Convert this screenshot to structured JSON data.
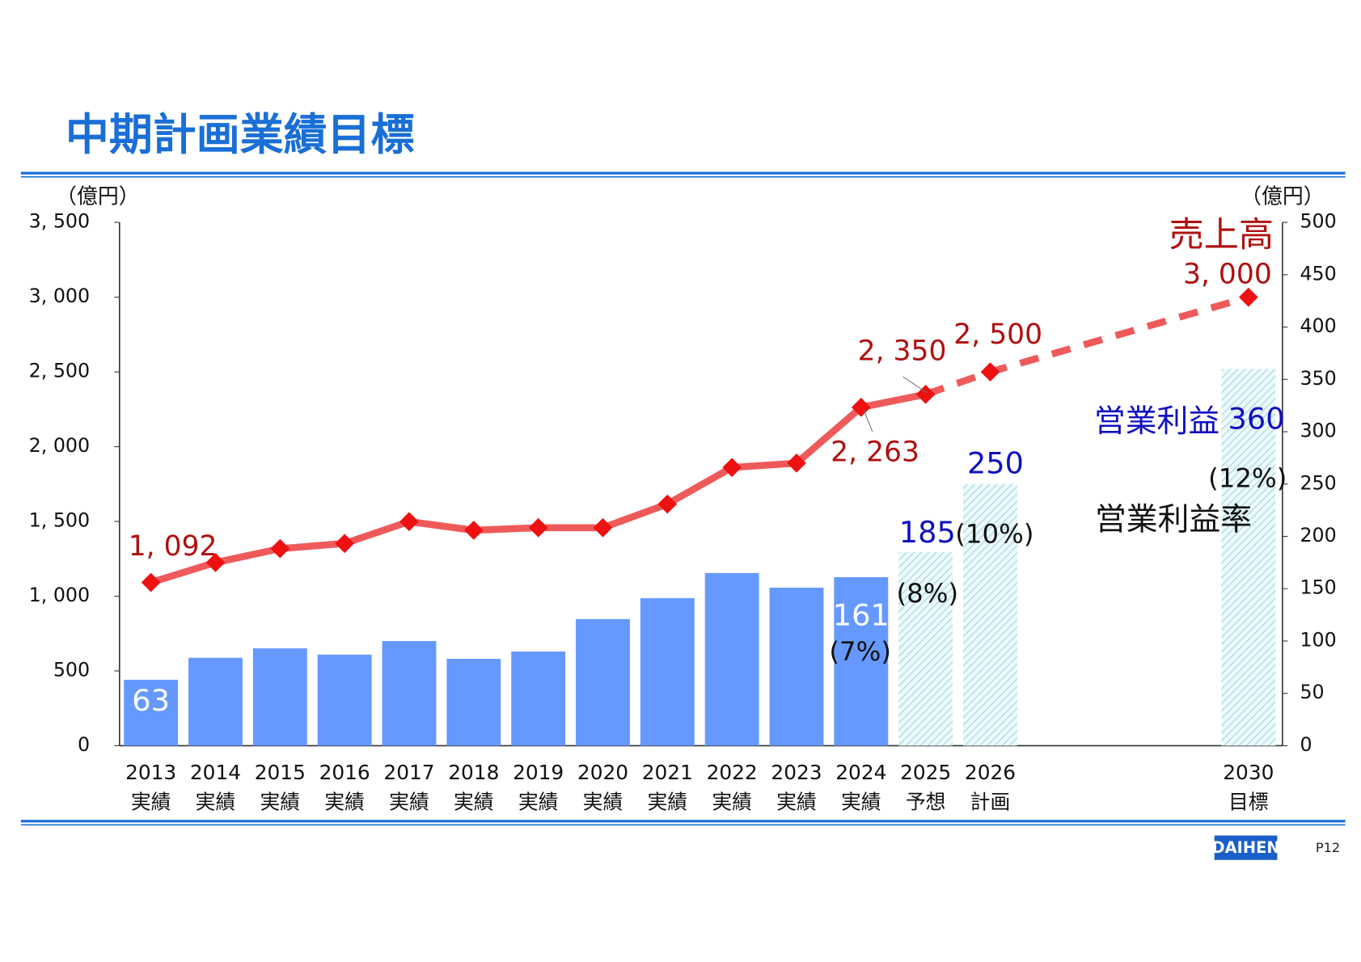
{
  "title": "中期計画業績目標",
  "footer": {
    "logo": "DAIHEN",
    "page": "P12"
  },
  "chart_data": {
    "type": "combo",
    "categories": [
      "2013",
      "2014",
      "2015",
      "2016",
      "2017",
      "2018",
      "2019",
      "2020",
      "2021",
      "2022",
      "2023",
      "2024",
      "2025",
      "2026",
      null,
      null,
      null,
      "2030"
    ],
    "category_sublabels": [
      "実績",
      "実績",
      "実績",
      "実績",
      "実績",
      "実績",
      "実績",
      "実績",
      "実績",
      "実績",
      "実績",
      "実績",
      "予想",
      "計画",
      null,
      null,
      null,
      "目標"
    ],
    "y_unit": "（億円）",
    "y2_unit": "（億円）",
    "ylim": [
      0,
      3500
    ],
    "yticks": [
      0,
      500,
      {
        "value": 1000,
        "label": "1, 000"
      },
      {
        "value": 1500,
        "label": "1, 500"
      },
      {
        "value": 2000,
        "label": "2, 000"
      },
      {
        "value": 2500,
        "label": "2, 500"
      },
      {
        "value": 3000,
        "label": "3, 000"
      },
      {
        "value": 3500,
        "label": "3, 500"
      }
    ],
    "y2lim": [
      0,
      500
    ],
    "y2ticks": [
      0,
      50,
      100,
      150,
      200,
      250,
      300,
      350,
      400,
      450,
      500
    ],
    "series": [
      {
        "name": "営業利益",
        "type": "bar",
        "axis": "y2",
        "color": "#6699ff",
        "hatch_color": "#9fd8e4",
        "forecast_from_index": 12,
        "values": [
          63,
          84,
          93,
          87,
          100,
          83,
          90,
          121,
          141,
          165,
          151,
          161,
          185,
          250,
          null,
          null,
          null,
          360
        ],
        "value_labels": [
          "63",
          null,
          null,
          null,
          null,
          null,
          null,
          null,
          null,
          null,
          null,
          "161",
          "185",
          "250",
          null,
          null,
          null,
          "360"
        ]
      },
      {
        "name": "営業利益率",
        "type": "label",
        "axis": "y2",
        "color": "#111111",
        "values": [
          null,
          null,
          null,
          null,
          null,
          null,
          null,
          null,
          null,
          null,
          null,
          7,
          8,
          10,
          null,
          null,
          null,
          12
        ],
        "value_labels": [
          null,
          null,
          null,
          null,
          null,
          null,
          null,
          null,
          null,
          null,
          null,
          "(7%)",
          "(8%)",
          "(10%)",
          null,
          null,
          null,
          "(12%)"
        ]
      },
      {
        "name": "売上高",
        "type": "line",
        "color": "#ee5a5a",
        "marker_color": "#ee1111",
        "label_color": "#b01010",
        "dashed_from_index": 12,
        "values": [
          1092,
          1225,
          1318,
          1353,
          1499,
          1441,
          1458,
          1458,
          1616,
          1861,
          1890,
          2263,
          2350,
          2500,
          null,
          null,
          null,
          3000
        ],
        "value_labels": [
          "1, 092",
          null,
          null,
          null,
          null,
          null,
          null,
          null,
          null,
          null,
          null,
          "2, 263",
          "2, 350",
          "2, 500",
          null,
          null,
          null,
          "3, 000"
        ]
      }
    ]
  }
}
